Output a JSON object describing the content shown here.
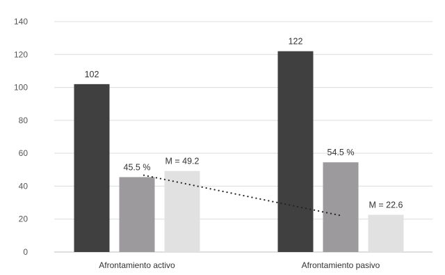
{
  "chart_data": {
    "type": "bar",
    "categories": [
      "Afrontamiento activo",
      "Afrontamiento pasivo"
    ],
    "series": [
      {
        "values": [
          102,
          122
        ],
        "labels": [
          "102",
          "122"
        ],
        "color": "#404040"
      },
      {
        "values": [
          45.5,
          54.5
        ],
        "labels": [
          "45.5 %",
          "54.5 %"
        ],
        "color": "#9c9a9d"
      },
      {
        "values": [
          49.2,
          22.6
        ],
        "labels": [
          "M = 49.2",
          "M = 22.6"
        ],
        "color": "#e1e1e1"
      }
    ],
    "trendline": {
      "style": "dotted",
      "from": [
        0,
        49.2
      ],
      "to": [
        1,
        22.6
      ]
    },
    "ylim": [
      0,
      140
    ],
    "yticks": [
      0,
      20,
      40,
      60,
      80,
      100,
      120,
      140
    ],
    "grid": true,
    "legend": "none",
    "title": "",
    "xlabel": "",
    "ylabel": ""
  }
}
